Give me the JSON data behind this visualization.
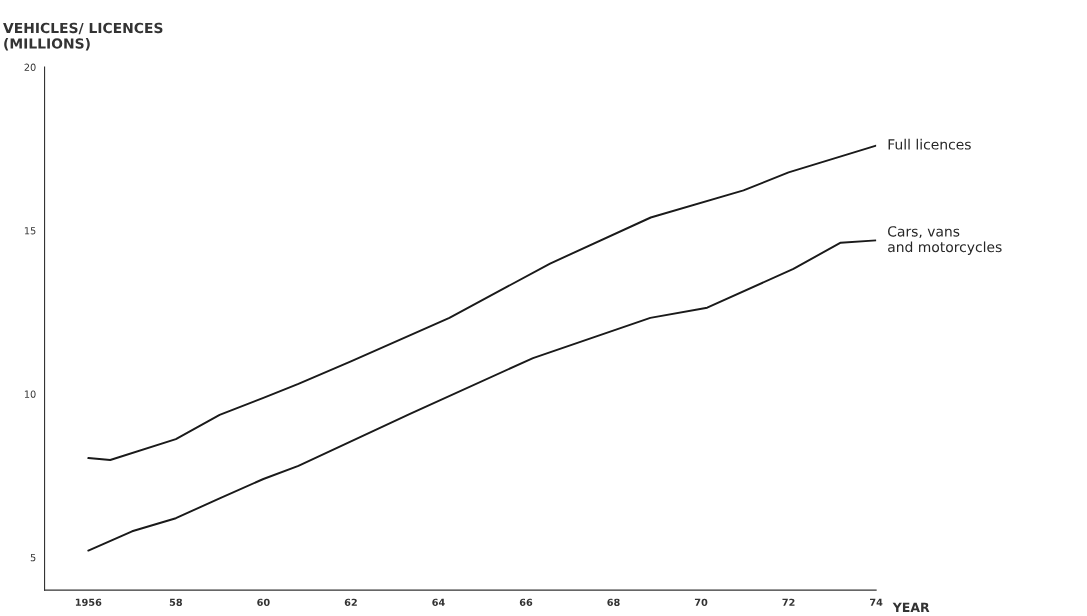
{
  "chart_data": {
    "type": "line",
    "ylabel": "VEHICLES/ LICENCES\n(MILLIONS)",
    "xlabel": "YEAR",
    "xlim": [
      1955,
      1974
    ],
    "xticks": [
      {
        "value": 1956,
        "label": "1956"
      },
      {
        "value": 1958,
        "label": "58"
      },
      {
        "value": 1960,
        "label": "60"
      },
      {
        "value": 1962,
        "label": "62"
      },
      {
        "value": 1964,
        "label": "64"
      },
      {
        "value": 1966,
        "label": "66"
      },
      {
        "value": 1968,
        "label": "68"
      },
      {
        "value": 1970,
        "label": "70"
      },
      {
        "value": 1972,
        "label": "72"
      },
      {
        "value": 1974,
        "label": "74"
      }
    ],
    "ylim": [
      4,
      20
    ],
    "yticks": [
      5,
      10,
      15,
      20
    ],
    "grid": false,
    "legend": false,
    "marker": "none",
    "line_style": "solid",
    "series": [
      {
        "name": "Full licences",
        "color": "#1a1a1a",
        "x": [
          1956,
          1956.5,
          1958,
          1959,
          1960,
          1960.8,
          1962,
          1964.25,
          1966.55,
          1968.85,
          1970.97,
          1972,
          1974
        ],
        "values": [
          8.04,
          7.98,
          8.62,
          9.36,
          9.88,
          10.31,
          11.0,
          12.33,
          13.99,
          15.4,
          16.23,
          16.78,
          17.6
        ]
      },
      {
        "name": "Cars, vans\nand motorcycles",
        "color": "#1a1a1a",
        "x": [
          1956,
          1957,
          1958,
          1959,
          1960,
          1960.8,
          1963.35,
          1966.16,
          1968.84,
          1970.14,
          1972.11,
          1973.19,
          1974
        ],
        "values": [
          5.21,
          5.8,
          6.2,
          6.81,
          7.4,
          7.8,
          9.39,
          11.1,
          12.33,
          12.64,
          13.83,
          14.63,
          14.7
        ]
      }
    ]
  }
}
